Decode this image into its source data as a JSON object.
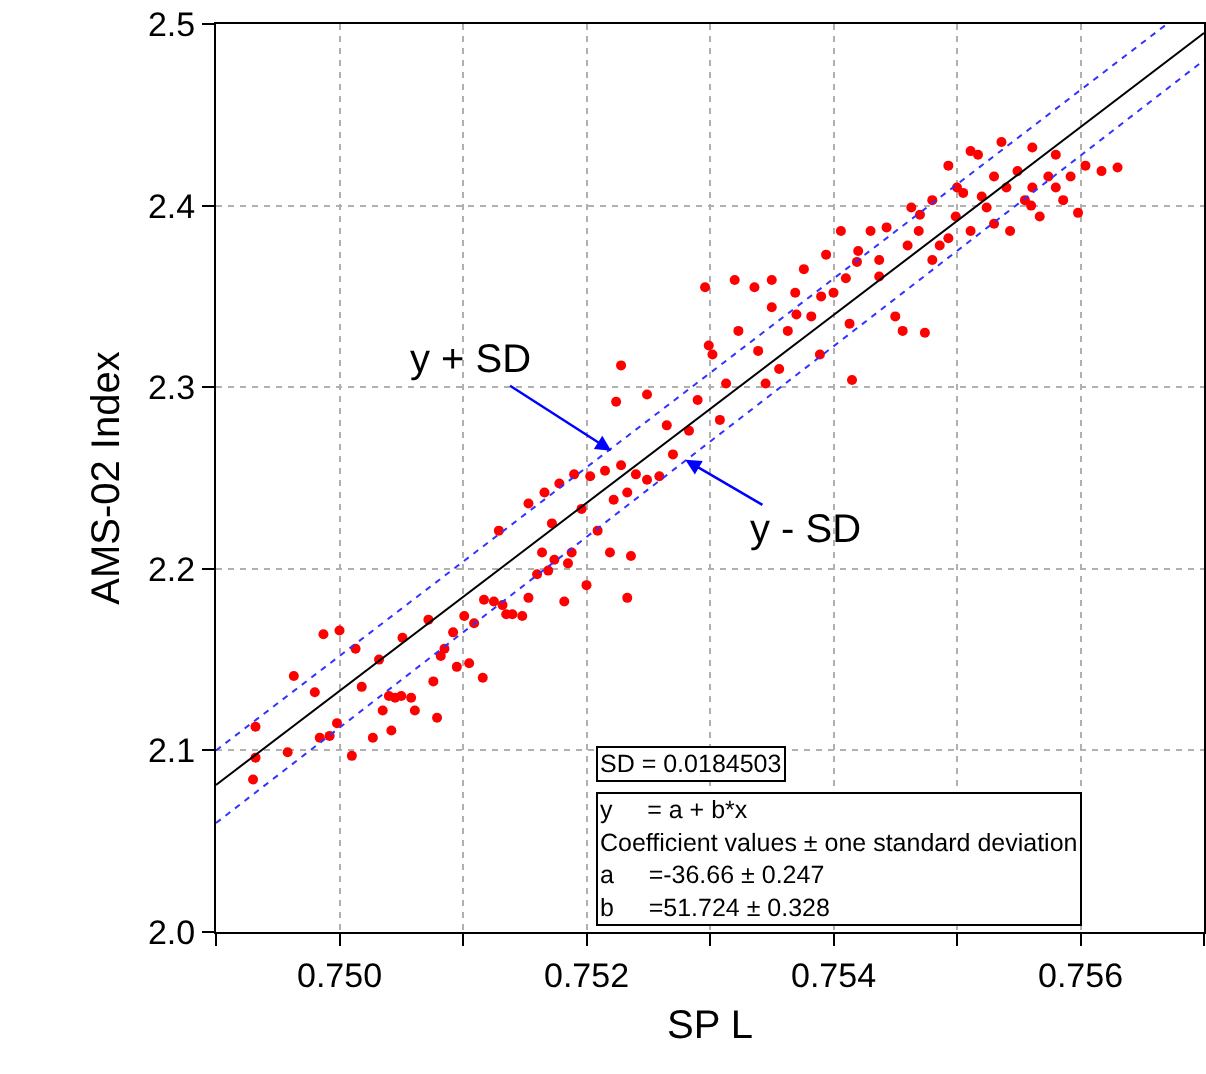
{
  "chart_data": {
    "type": "scatter",
    "xlabel": "SP L",
    "ylabel": "AMS-02 Index",
    "xlim": [
      0.749,
      0.757
    ],
    "ylim": [
      2.0,
      2.5
    ],
    "xticks": [
      {
        "value": 0.749,
        "label": null
      },
      {
        "value": 0.75,
        "label": "0.750"
      },
      {
        "value": 0.751,
        "label": null
      },
      {
        "value": 0.752,
        "label": "0.752"
      },
      {
        "value": 0.753,
        "label": null
      },
      {
        "value": 0.754,
        "label": "0.754"
      },
      {
        "value": 0.755,
        "label": null
      },
      {
        "value": 0.756,
        "label": "0.756"
      },
      {
        "value": 0.757,
        "label": null
      }
    ],
    "yticks": [
      {
        "value": 2.0,
        "label": "2.0"
      },
      {
        "value": 2.1,
        "label": "2.1"
      },
      {
        "value": 2.2,
        "label": "2.2"
      },
      {
        "value": 2.3,
        "label": "2.3"
      },
      {
        "value": 2.4,
        "label": "2.4"
      },
      {
        "value": 2.5,
        "label": "2.5"
      }
    ],
    "grid": true,
    "marker": "circle",
    "series": [
      {
        "color": "#ff0000",
        "x": [
          0.74932,
          0.74932,
          0.7493,
          0.74958,
          0.74963,
          0.7498,
          0.74987,
          0.75,
          0.74984,
          0.74992,
          0.7501,
          0.74998,
          0.75013,
          0.75018,
          0.75032,
          0.75027,
          0.75035,
          0.75042,
          0.75045,
          0.75051,
          0.75058,
          0.75061,
          0.75072,
          0.75076,
          0.75079,
          0.75082,
          0.75085,
          0.75092,
          0.75095,
          0.75101,
          0.75105,
          0.75109,
          0.75116,
          0.75117,
          0.75125,
          0.75132,
          0.75135,
          0.7514,
          0.75148,
          0.75153,
          0.7516,
          0.75164,
          0.75169,
          0.75174,
          0.75182,
          0.75185,
          0.75188,
          0.752,
          0.75219,
          0.75233,
          0.75236,
          0.7505,
          0.7504,
          0.75153,
          0.75166,
          0.75178,
          0.7519,
          0.75203,
          0.75215,
          0.75228,
          0.7524,
          0.75249,
          0.75196,
          0.75222,
          0.75233,
          0.75172,
          0.75209,
          0.75129,
          0.75228,
          0.75224,
          0.75249,
          0.75265,
          0.7527,
          0.75259,
          0.75283,
          0.7529,
          0.75296,
          0.75299,
          0.75308,
          0.75302,
          0.7532,
          0.75313,
          0.75323,
          0.75336,
          0.75339,
          0.7535,
          0.75345,
          0.75356,
          0.7535,
          0.75363,
          0.75369,
          0.75376,
          0.75382,
          0.75389,
          0.75394,
          0.754,
          0.75406,
          0.75413,
          0.75415,
          0.75419,
          0.7543,
          0.75437,
          0.75443,
          0.7545,
          0.7546,
          0.75469,
          0.75474,
          0.7548,
          0.75486,
          0.75493,
          0.75499,
          0.75505,
          0.75511,
          0.75517,
          0.75524,
          0.7553,
          0.75536,
          0.75543,
          0.75549,
          0.75555,
          0.75561,
          0.75567,
          0.75574,
          0.7558,
          0.75586,
          0.75592,
          0.75598,
          0.75604,
          0.75617,
          0.7563,
          0.75493,
          0.7548,
          0.7553,
          0.75561,
          0.75463,
          0.75437,
          0.75511,
          0.75456,
          0.7539,
          0.7541,
          0.7542,
          0.7537,
          0.7552,
          0.7554,
          0.7556,
          0.755,
          0.7547,
          0.7558
        ],
        "values": [
          2.113,
          2.096,
          2.084,
          2.099,
          2.141,
          2.132,
          2.164,
          2.166,
          2.107,
          2.108,
          2.097,
          2.115,
          2.156,
          2.135,
          2.15,
          2.107,
          2.122,
          2.111,
          2.129,
          2.162,
          2.129,
          2.122,
          2.172,
          2.138,
          2.118,
          2.152,
          2.156,
          2.165,
          2.146,
          2.174,
          2.148,
          2.17,
          2.14,
          2.183,
          2.182,
          2.18,
          2.175,
          2.175,
          2.174,
          2.184,
          2.197,
          2.209,
          2.199,
          2.205,
          2.182,
          2.203,
          2.209,
          2.191,
          2.209,
          2.184,
          2.207,
          2.13,
          2.13,
          2.236,
          2.242,
          2.247,
          2.252,
          2.251,
          2.254,
          2.257,
          2.252,
          2.249,
          2.233,
          2.238,
          2.242,
          2.225,
          2.221,
          2.221,
          2.312,
          2.292,
          2.296,
          2.279,
          2.263,
          2.251,
          2.276,
          2.293,
          2.355,
          2.323,
          2.282,
          2.318,
          2.359,
          2.302,
          2.331,
          2.355,
          2.32,
          2.344,
          2.302,
          2.31,
          2.359,
          2.331,
          2.352,
          2.365,
          2.339,
          2.318,
          2.373,
          2.352,
          2.386,
          2.335,
          2.304,
          2.369,
          2.386,
          2.361,
          2.388,
          2.339,
          2.378,
          2.386,
          2.33,
          2.403,
          2.378,
          2.422,
          2.394,
          2.407,
          2.386,
          2.428,
          2.399,
          2.416,
          2.435,
          2.386,
          2.419,
          2.403,
          2.432,
          2.394,
          2.416,
          2.428,
          2.403,
          2.416,
          2.396,
          2.422,
          2.419,
          2.421,
          2.382,
          2.37,
          2.39,
          2.41,
          2.399,
          2.37,
          2.43,
          2.331,
          2.35,
          2.36,
          2.375,
          2.34,
          2.405,
          2.41,
          2.4,
          2.41,
          2.395,
          2.41
        ]
      },
      {
        "type": "line",
        "color": "#000000",
        "line_style": "solid",
        "marker": "none",
        "x": [
          0.749,
          0.757
        ],
        "values": [
          2.081,
          2.495
        ]
      },
      {
        "type": "line",
        "color": "#3333ff",
        "line_style": "dotted",
        "marker": "none",
        "x": [
          0.749,
          0.7567
        ],
        "values": [
          2.1,
          2.5
        ]
      },
      {
        "type": "line",
        "color": "#3333ff",
        "line_style": "dotted",
        "marker": "none",
        "x": [
          0.749,
          0.757
        ],
        "values": [
          2.06,
          2.48
        ]
      }
    ],
    "annotations": [
      {
        "text": "y + SD",
        "x": 0.7522,
        "y": 2.265
      },
      {
        "text": "y - SD",
        "x": 0.7528,
        "y": 2.26
      },
      "SD = 0.0184503",
      "y     = a + b*x\nCoefficient values ± one standard deviation\na     =-36.66 ± 0.247\nb     =51.724 ± 0.328"
    ]
  }
}
